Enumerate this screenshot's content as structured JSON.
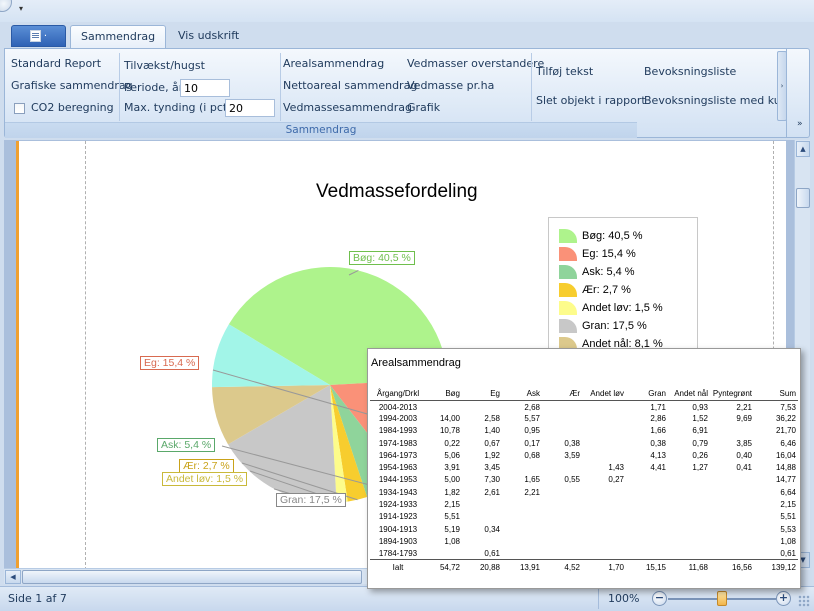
{
  "quick_access": {
    "dropdown_glyph": "▾"
  },
  "tabs": [
    {
      "label": "Sammendrag",
      "active": true
    },
    {
      "label": "Vis udskrift",
      "active": false
    }
  ],
  "ribbon": {
    "col1": [
      "Standard Report",
      "Grafiske sammendrag",
      "CO2 beregning"
    ],
    "tilvaekst_label": "Tilvækst/hugst",
    "periode_label": "Periode, år",
    "periode_value": "10",
    "tynding_label": "Max. tynding (i pct.)",
    "tynding_value": "20",
    "col3": [
      "Arealsammendrag",
      "Nettoareal sammendrag",
      "Vedmassesammendrag"
    ],
    "col4": [
      "Vedmasser overstandere",
      "Vedmasse pr.ha",
      "Grafik"
    ],
    "col5": [
      "Tilføj tekst",
      "Slet objekt i rapport"
    ],
    "group_label": "Sammendrag",
    "group2_items": [
      "Bevoksningsliste",
      "Bevoksningsliste med kultur"
    ],
    "scroll_glyph": "›",
    "collapse_glyph": "»"
  },
  "chart_data": {
    "type": "pie",
    "title": "Vedmassefordeling",
    "slices": [
      {
        "label": "Bøg",
        "value": 40.5,
        "text": "Bøg: 40,5 %",
        "color": "#aef38c"
      },
      {
        "label": "Eg",
        "value": 15.4,
        "text": "Eg: 15,4 %",
        "color": "#fa9178"
      },
      {
        "label": "Ask",
        "value": 5.4,
        "text": "Ask: 5,4 %",
        "color": "#8fd49b"
      },
      {
        "label": "Ær",
        "value": 2.7,
        "text": "Ær: 2,7 %",
        "color": "#f7cd2e"
      },
      {
        "label": "Andet løv",
        "value": 1.5,
        "text": "Andet løv: 1,5 %",
        "color": "#fdfc8b"
      },
      {
        "label": "Gran",
        "value": 17.5,
        "text": "Gran: 17,5 %",
        "color": "#c8c8c8"
      },
      {
        "label": "Andet nål",
        "value": 8.1,
        "text": "Andet nål: 8,1 %",
        "color": "#dcc98c"
      },
      {
        "label": "Pyntegrønt",
        "value": 8.9,
        "text": "",
        "color": "#a2f5e8"
      }
    ],
    "visible_labels": [
      "Bøg: 40,5 %",
      "Eg: 15,4 %",
      "Ask: 5,4 %",
      "Ær: 2,7 %",
      "Andet løv: 1,5 %",
      "Gran: 17,5 %"
    ],
    "legend_entries": [
      "Bøg: 40,5 %",
      "Eg: 15,4 %",
      "Ask: 5,4 %",
      "Ær: 2,7 %",
      "Andet løv: 1,5 %",
      "Gran: 17,5 %",
      "Andet nål: 8,1 %"
    ],
    "legend_position": "right"
  },
  "popup": {
    "title": "Arealsammendrag",
    "headers": [
      "Årgang/Drkl",
      "Bøg",
      "Eg",
      "Ask",
      "Ær",
      "Andet løv",
      "Gran",
      "Andet nål",
      "Pyntegrønt",
      "Sum"
    ],
    "rows": [
      [
        "2004-2013",
        "",
        "",
        "2,68",
        "",
        "",
        "1,71",
        "0,93",
        "2,21",
        "7,53"
      ],
      [
        "1994-2003",
        "14,00",
        "2,58",
        "5,57",
        "",
        "",
        "2,86",
        "1,52",
        "9,69",
        "36,22"
      ],
      [
        "1984-1993",
        "10,78",
        "1,40",
        "0,95",
        "",
        "",
        "1,66",
        "6,91",
        "",
        "21,70"
      ],
      [
        "1974-1983",
        "0,22",
        "0,67",
        "0,17",
        "0,38",
        "",
        "0,38",
        "0,79",
        "3,85",
        "6,46"
      ],
      [
        "1964-1973",
        "5,06",
        "1,92",
        "0,68",
        "3,59",
        "",
        "4,13",
        "0,26",
        "0,40",
        "16,04"
      ],
      [
        "1954-1963",
        "3,91",
        "3,45",
        "",
        "",
        "1,43",
        "4,41",
        "1,27",
        "0,41",
        "14,88"
      ],
      [
        "1944-1953",
        "5,00",
        "7,30",
        "1,65",
        "0,55",
        "0,27",
        "",
        "",
        "",
        "14,77"
      ],
      [
        "1934-1943",
        "1,82",
        "2,61",
        "2,21",
        "",
        "",
        "",
        "",
        "",
        "6,64"
      ],
      [
        "1924-1933",
        "2,15",
        "",
        "",
        "",
        "",
        "",
        "",
        "",
        "2,15"
      ],
      [
        "1914-1923",
        "5,51",
        "",
        "",
        "",
        "",
        "",
        "",
        "",
        "5,51"
      ],
      [
        "1904-1913",
        "5,19",
        "0,34",
        "",
        "",
        "",
        "",
        "",
        "",
        "5,53"
      ],
      [
        "1894-1903",
        "1,08",
        "",
        "",
        "",
        "",
        "",
        "",
        "",
        "1,08"
      ],
      [
        "1784-1793",
        "",
        "0,61",
        "",
        "",
        "",
        "",
        "",
        "",
        "0,61"
      ]
    ],
    "total": [
      "Ialt",
      "54,72",
      "20,88",
      "13,91",
      "4,52",
      "1,70",
      "15,15",
      "11,68",
      "16,56",
      "139,12"
    ]
  },
  "status": {
    "page_text": "Side 1 af 7",
    "zoom_text": "100%",
    "zoom_out": "−",
    "zoom_in": "+",
    "zoom_fraction": 0.5
  },
  "scroll": {
    "up": "▲",
    "down": "▼",
    "left": "◀",
    "right": "▶"
  }
}
